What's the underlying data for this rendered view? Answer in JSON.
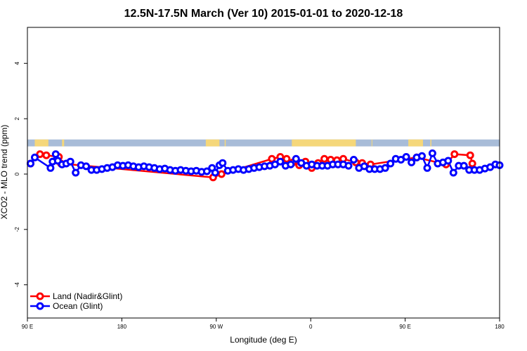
{
  "chart_data": {
    "type": "line",
    "title": "12.5N-17.5N March (Ver 10)   2015-01-01 to 2020-12-18",
    "xlabel": "Longitude (deg E)",
    "ylabel": "XCO2 - MLO trend (ppm)",
    "xlim": [
      90,
      540
    ],
    "ylim": [
      -5.2,
      5.3
    ],
    "x_ticks": [
      {
        "value": 90,
        "label": "90 E"
      },
      {
        "value": 180,
        "label": "180"
      },
      {
        "value": 270,
        "label": "90 W"
      },
      {
        "value": 360,
        "label": "0"
      },
      {
        "value": 450,
        "label": "90 E"
      },
      {
        "value": 540,
        "label": "180"
      }
    ],
    "y_ticks": [
      {
        "value": -4,
        "label": "-4"
      },
      {
        "value": -2,
        "label": "-2"
      },
      {
        "value": 0,
        "label": "0"
      },
      {
        "value": 2,
        "label": "2"
      },
      {
        "value": 4,
        "label": "4"
      }
    ],
    "legend_position": "bottom-left",
    "land_band": {
      "y_range": [
        1.0,
        1.25
      ],
      "ocean_color": "#a8bcd8",
      "land_color": "#f5d77a",
      "land_x_ranges": [
        [
          97,
          110
        ],
        [
          123,
          125
        ],
        [
          260,
          273
        ],
        [
          278,
          279
        ],
        [
          342,
          403
        ],
        [
          418,
          418.5
        ],
        [
          453,
          467
        ],
        [
          474,
          475
        ]
      ]
    },
    "series": [
      {
        "name": "Land (Nadir&Glint)",
        "color": "#ff0000",
        "x": [
          93,
          102,
          108,
          120,
          122,
          323,
          331,
          337,
          343,
          349,
          355,
          361,
          367,
          373,
          379,
          385,
          391,
          403,
          409,
          417,
          461,
          489,
          497,
          512,
          514,
          267,
          275
        ],
        "y": [
          0.38,
          0.72,
          0.68,
          0.62,
          0.38,
          0.55,
          0.62,
          0.55,
          0.42,
          0.32,
          0.45,
          0.22,
          0.4,
          0.55,
          0.52,
          0.5,
          0.55,
          0.42,
          0.4,
          0.35,
          0.6,
          0.35,
          0.72,
          0.68,
          0.38,
          -0.12,
          0.0
        ]
      },
      {
        "name": "Ocean (Glint)",
        "color": "#0000ff",
        "x": [
          93,
          97,
          112,
          114,
          117,
          119,
          123,
          127,
          131,
          136,
          141,
          146,
          151,
          156,
          161,
          166,
          171,
          176,
          181,
          186,
          191,
          196,
          201,
          206,
          211,
          216,
          221,
          226,
          231,
          236,
          241,
          246,
          251,
          256,
          261,
          266,
          269,
          273,
          276,
          281,
          286,
          291,
          296,
          301,
          306,
          311,
          316,
          321,
          326,
          331,
          336,
          341,
          346,
          351,
          356,
          361,
          366,
          371,
          376,
          381,
          386,
          391,
          396,
          401,
          406,
          411,
          416,
          421,
          426,
          431,
          436,
          441,
          446,
          451,
          456,
          461,
          466,
          471,
          476,
          481,
          486,
          491,
          496,
          501,
          506,
          511,
          516,
          521,
          526,
          531,
          536,
          540
        ],
        "y": [
          0.38,
          0.6,
          0.22,
          0.45,
          0.72,
          0.48,
          0.35,
          0.38,
          0.45,
          0.05,
          0.32,
          0.28,
          0.15,
          0.15,
          0.18,
          0.22,
          0.25,
          0.32,
          0.3,
          0.32,
          0.28,
          0.25,
          0.28,
          0.25,
          0.22,
          0.18,
          0.2,
          0.15,
          0.12,
          0.15,
          0.12,
          0.1,
          0.12,
          0.08,
          0.1,
          0.22,
          0.05,
          0.32,
          0.4,
          0.12,
          0.15,
          0.18,
          0.15,
          0.18,
          0.22,
          0.25,
          0.28,
          0.3,
          0.35,
          0.45,
          0.3,
          0.35,
          0.55,
          0.4,
          0.3,
          0.35,
          0.3,
          0.3,
          0.3,
          0.35,
          0.35,
          0.35,
          0.3,
          0.52,
          0.22,
          0.28,
          0.18,
          0.18,
          0.18,
          0.22,
          0.38,
          0.55,
          0.52,
          0.62,
          0.42,
          0.6,
          0.65,
          0.22,
          0.75,
          0.38,
          0.42,
          0.48,
          0.05,
          0.3,
          0.3,
          0.15,
          0.15,
          0.15,
          0.2,
          0.25,
          0.35,
          0.32
        ]
      }
    ]
  }
}
